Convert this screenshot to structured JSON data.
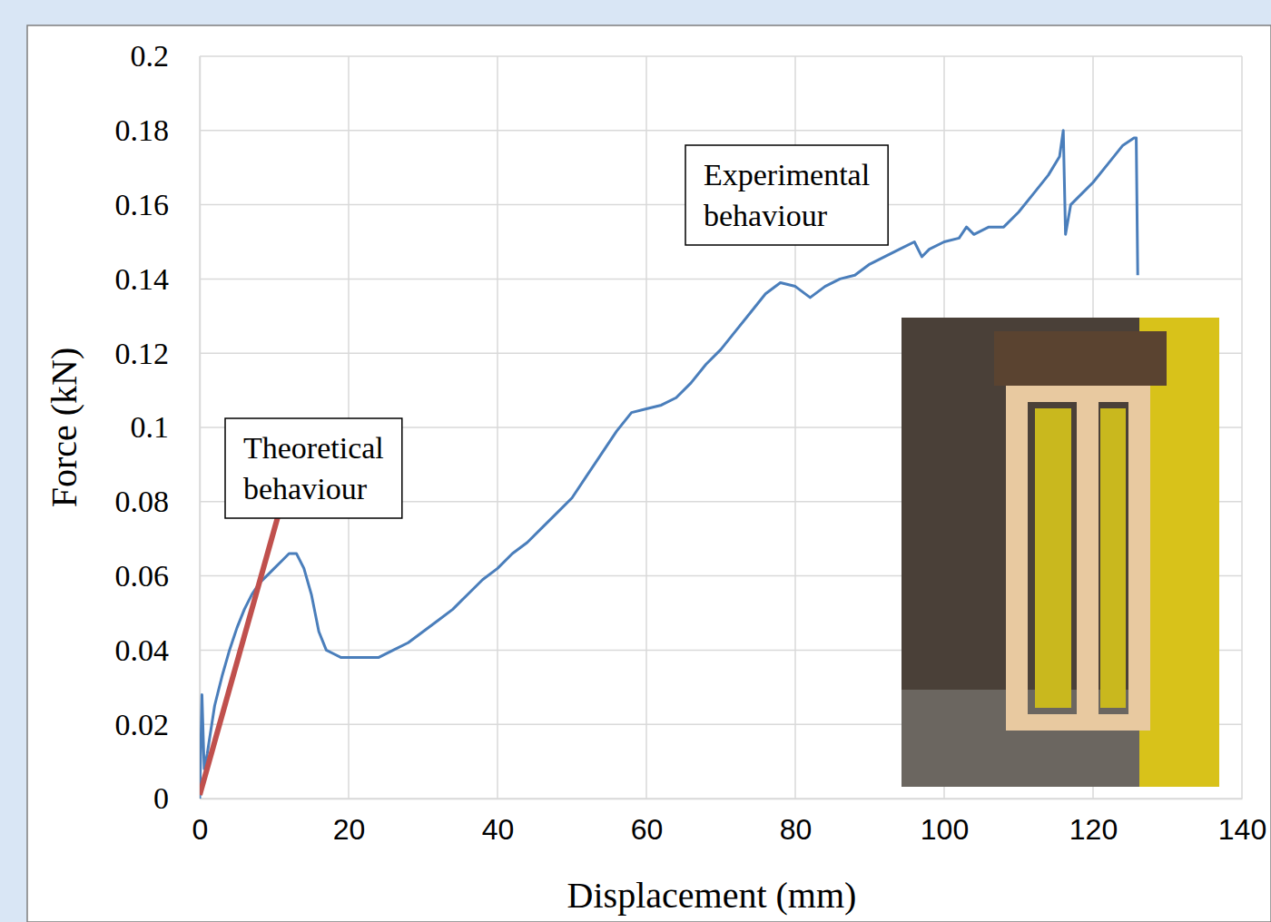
{
  "chart_data": {
    "type": "line",
    "x_label": "Displacement (mm)",
    "y_label": "Force (kN)",
    "xlim": [
      0,
      140
    ],
    "xticks": [
      0,
      20,
      40,
      60,
      80,
      100,
      120,
      140
    ],
    "ylim": [
      0,
      0.2
    ],
    "yticks": [
      0,
      0.02,
      0.04,
      0.06,
      0.08,
      0.1,
      0.12,
      0.14,
      0.16,
      0.18,
      0.2
    ],
    "grid": true,
    "series": [
      {
        "name": "Experimental behaviour",
        "color": "#4a7ebb",
        "x": [
          0,
          0.3,
          0.6,
          1,
          2,
          3,
          4,
          5,
          6,
          7,
          8,
          9,
          10,
          11,
          12,
          13,
          14,
          15,
          16,
          17,
          18,
          19,
          20,
          22,
          24,
          26,
          28,
          30,
          32,
          34,
          36,
          38,
          40,
          42,
          44,
          46,
          48,
          50,
          52,
          54,
          56,
          58,
          60,
          62,
          64,
          66,
          68,
          70,
          72,
          74,
          76,
          78,
          80,
          82,
          84,
          86,
          88,
          90,
          92,
          94,
          96,
          97,
          98,
          100,
          102,
          103,
          104,
          106,
          108,
          110,
          112,
          114,
          115.5,
          116,
          116.3,
          117,
          118,
          120,
          122,
          124,
          125.5,
          125.8,
          126
        ],
        "values": [
          0,
          0.028,
          0.008,
          0.012,
          0.025,
          0.033,
          0.04,
          0.046,
          0.051,
          0.055,
          0.058,
          0.06,
          0.062,
          0.064,
          0.066,
          0.066,
          0.062,
          0.055,
          0.045,
          0.04,
          0.039,
          0.038,
          0.038,
          0.038,
          0.038,
          0.04,
          0.042,
          0.045,
          0.048,
          0.051,
          0.055,
          0.059,
          0.062,
          0.066,
          0.069,
          0.073,
          0.077,
          0.081,
          0.087,
          0.093,
          0.099,
          0.104,
          0.105,
          0.106,
          0.108,
          0.112,
          0.117,
          0.121,
          0.126,
          0.131,
          0.136,
          0.139,
          0.138,
          0.135,
          0.138,
          0.14,
          0.141,
          0.144,
          0.146,
          0.148,
          0.15,
          0.146,
          0.148,
          0.15,
          0.151,
          0.154,
          0.152,
          0.154,
          0.154,
          0.158,
          0.163,
          0.168,
          0.173,
          0.18,
          0.152,
          0.16,
          0.162,
          0.166,
          0.171,
          0.176,
          0.178,
          0.178,
          0.141
        ]
      },
      {
        "name": "Theoretical behaviour",
        "color": "#c0504d",
        "x": [
          0,
          10.5
        ],
        "values": [
          0.001,
          0.076
        ]
      }
    ]
  }
}
